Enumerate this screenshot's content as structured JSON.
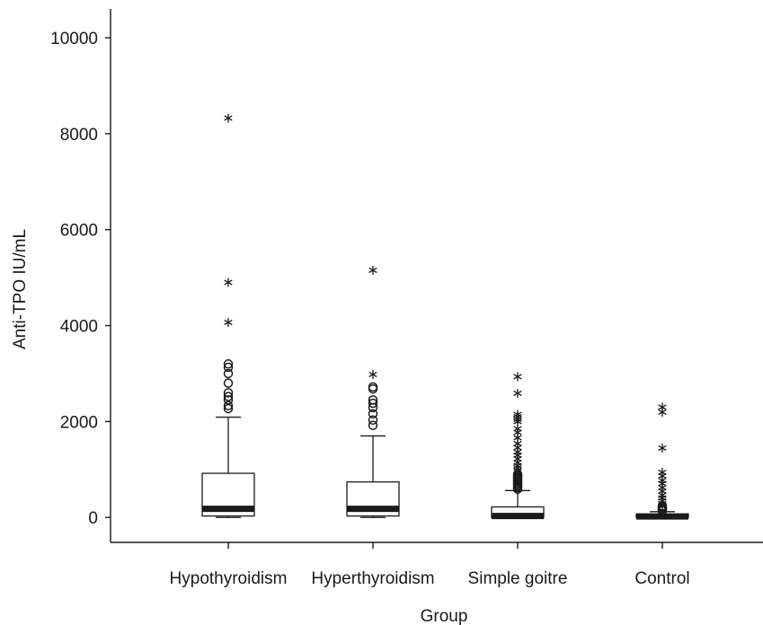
{
  "chart_data": {
    "type": "boxplot",
    "xlabel": "Group",
    "ylabel": "Anti-TPO IU/mL",
    "ylim": [
      -520,
      10600
    ],
    "yticks": [
      0,
      2000,
      4000,
      6000,
      8000,
      10000
    ],
    "ytick_labels": [
      "0",
      "2000",
      "4000",
      "6000",
      "8000",
      "10000"
    ],
    "grid": false,
    "categories": [
      "Hypothyroidism",
      "Hyperthyroidism",
      "Simple goitre",
      "Control"
    ],
    "boxes": [
      {
        "name": "Hypothyroidism",
        "whisker_low": 0,
        "q1": 30,
        "median": 180,
        "q3": 920,
        "whisker_high": 2090,
        "outliers_circle": [
          2270,
          2330,
          2450,
          2520,
          2600,
          2800,
          3000,
          3130,
          3200
        ],
        "outliers_star": [
          4120,
          4960,
          8380
        ]
      },
      {
        "name": "Hyperthyroidism",
        "whisker_low": 0,
        "q1": 30,
        "median": 180,
        "q3": 740,
        "whisker_high": 1700,
        "outliers_circle": [
          1920,
          2030,
          2160,
          2290,
          2380,
          2450,
          2680,
          2720
        ],
        "outliers_star": [
          3040,
          5210
        ]
      },
      {
        "name": "Simple goitre",
        "whisker_low": 0,
        "q1": 0,
        "median": 30,
        "q3": 220,
        "whisker_high": 560,
        "outliers_circle": [
          590,
          620,
          650,
          680,
          710,
          740,
          770,
          800,
          830,
          860,
          900
        ],
        "outliers_star": [
          960,
          1030,
          1090,
          1140,
          1200,
          1280,
          1350,
          1420,
          1510,
          1600,
          1720,
          1830,
          1900,
          2050,
          2100,
          2160,
          2200,
          2640,
          2990
        ]
      },
      {
        "name": "Control",
        "whisker_low": 0,
        "q1": 0,
        "median": 20,
        "q3": 70,
        "whisker_high": 120,
        "outliers_circle": [
          140,
          160,
          180,
          200,
          220,
          240
        ],
        "outliers_star": [
          290,
          340,
          400,
          460,
          520,
          600,
          680,
          760,
          830,
          920,
          1000,
          1500,
          2250,
          2350
        ]
      }
    ]
  }
}
